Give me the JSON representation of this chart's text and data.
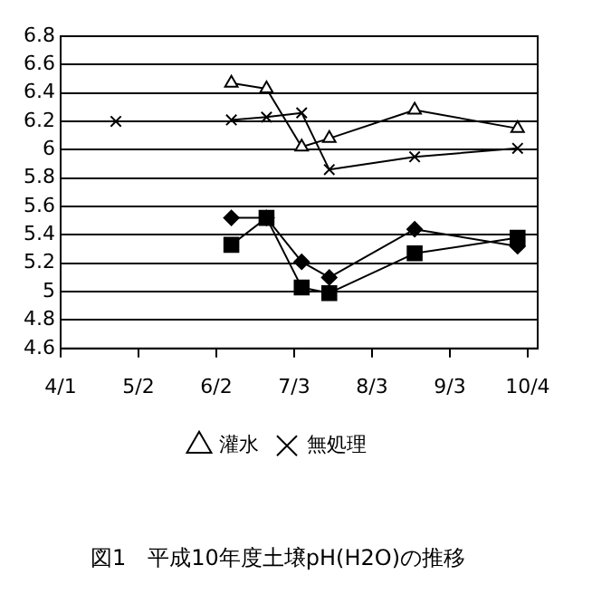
{
  "chart_data": {
    "type": "line",
    "title": "図1　平成10年度土壌pH(H2O)の推移",
    "xlim": [
      "--04-01",
      "--10-08"
    ],
    "xticks": [
      {
        "value": "--04-01",
        "label": "4/1"
      },
      {
        "value": "--05-02",
        "label": "5/2"
      },
      {
        "value": "--06-02",
        "label": "6/2"
      },
      {
        "value": "--07-03",
        "label": "7/3"
      },
      {
        "value": "--08-03",
        "label": "8/3"
      },
      {
        "value": "--09-03",
        "label": "9/3"
      },
      {
        "value": "--10-04",
        "label": "10/4"
      }
    ],
    "ylim": [
      4.6,
      6.8
    ],
    "yticks": [
      4.6,
      4.8,
      5,
      5.2,
      5.4,
      5.6,
      5.8,
      6,
      6.2,
      6.4,
      6.6,
      6.8
    ],
    "grid": "y",
    "legend": "bottom",
    "series": [
      {
        "color": "#000000",
        "marker": "diamond",
        "x": [
          "--06-08",
          "--06-22",
          "--07-06",
          "--07-17",
          "--08-20",
          "--09-30"
        ],
        "values": [
          5.52,
          5.52,
          5.21,
          5.1,
          5.44,
          5.32
        ]
      },
      {
        "color": "#000000",
        "marker": "square",
        "x": [
          "--06-08",
          "--06-22",
          "--07-06",
          "--07-17",
          "--08-20",
          "--09-30"
        ],
        "values": [
          5.33,
          5.52,
          5.03,
          4.99,
          5.27,
          5.38
        ]
      },
      {
        "name": "灌水",
        "color": "#000000",
        "marker": "triangle",
        "x": [
          "--06-08",
          "--06-22",
          "--07-06",
          "--07-17",
          "--08-20",
          "--09-30"
        ],
        "values": [
          6.47,
          6.43,
          6.02,
          6.08,
          6.28,
          6.15
        ]
      },
      {
        "name": "無処理",
        "color": "#000000",
        "marker": "cross",
        "x": [
          "--04-23",
          "--05-20",
          "--06-08",
          "--06-22",
          "--07-06",
          "--07-17",
          "--08-20",
          "--09-30"
        ],
        "values": [
          6.2,
          null,
          6.21,
          6.23,
          6.26,
          5.86,
          5.95,
          6.01
        ]
      }
    ]
  }
}
